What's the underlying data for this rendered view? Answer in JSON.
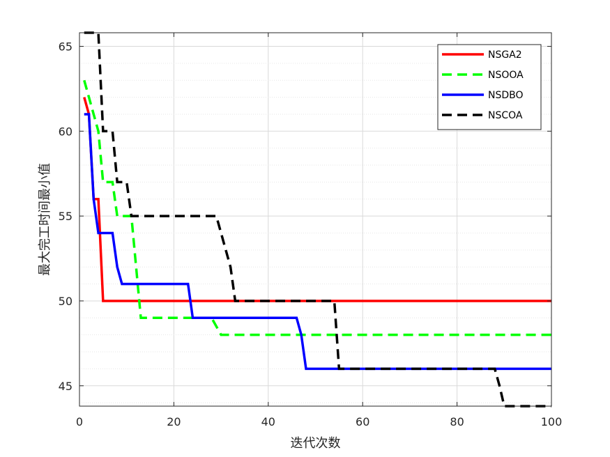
{
  "chart_data": {
    "type": "line",
    "title": "",
    "xlabel": "迭代次数",
    "ylabel": "最大完工时间最小值",
    "xlim": [
      0,
      100
    ],
    "ylim": [
      43.8,
      65.8
    ],
    "x_ticks": [
      0,
      20,
      40,
      60,
      80,
      100
    ],
    "y_ticks": [
      45,
      50,
      55,
      60,
      65
    ],
    "grid": "major and minor on y, major on x",
    "legend": "top-right",
    "series": [
      {
        "name": "NSGA2",
        "color": "#ff0000",
        "style": "solid",
        "points": [
          [
            1,
            62
          ],
          [
            2,
            61
          ],
          [
            3,
            56
          ],
          [
            4,
            56
          ],
          [
            5,
            50
          ],
          [
            100,
            50
          ]
        ]
      },
      {
        "name": "NSOOA",
        "color": "#00ff00",
        "style": "dashed",
        "points": [
          [
            1,
            63
          ],
          [
            2,
            62
          ],
          [
            3,
            61
          ],
          [
            4,
            60
          ],
          [
            5,
            57
          ],
          [
            6,
            57
          ],
          [
            7,
            57
          ],
          [
            8,
            55
          ],
          [
            11,
            55
          ],
          [
            12,
            52
          ],
          [
            13,
            49
          ],
          [
            28,
            49
          ],
          [
            30,
            48
          ],
          [
            100,
            48
          ]
        ]
      },
      {
        "name": "NSDBO",
        "color": "#0000ff",
        "style": "solid",
        "points": [
          [
            1,
            61
          ],
          [
            2,
            61
          ],
          [
            3,
            56
          ],
          [
            4,
            54
          ],
          [
            7,
            54
          ],
          [
            8,
            52
          ],
          [
            9,
            51
          ],
          [
            23,
            51
          ],
          [
            24,
            49
          ],
          [
            46,
            49
          ],
          [
            47,
            48
          ],
          [
            48,
            46
          ],
          [
            100,
            46
          ]
        ]
      },
      {
        "name": "NSCOA",
        "color": "#000000",
        "style": "dashed",
        "points": [
          [
            1,
            65.8
          ],
          [
            4,
            65.8
          ],
          [
            5,
            60
          ],
          [
            7,
            60
          ],
          [
            8,
            57
          ],
          [
            10,
            57
          ],
          [
            11,
            55
          ],
          [
            29,
            55
          ],
          [
            31,
            53
          ],
          [
            32,
            52
          ],
          [
            33,
            50
          ],
          [
            54,
            50
          ],
          [
            55,
            46
          ],
          [
            88,
            46
          ],
          [
            89,
            45
          ],
          [
            90,
            43.8
          ],
          [
            100,
            43.8
          ]
        ]
      }
    ]
  }
}
